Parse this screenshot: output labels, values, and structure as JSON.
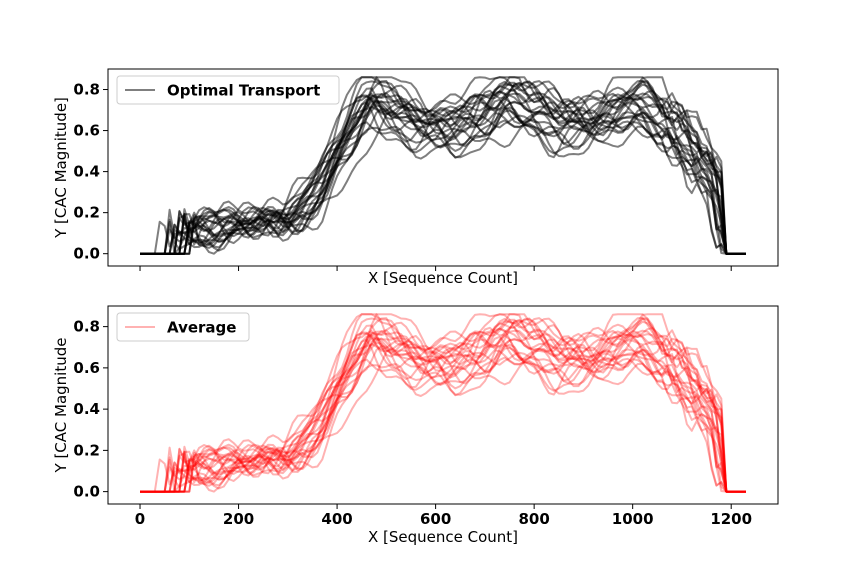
{
  "chart_data": [
    {
      "type": "line",
      "xlim": [
        -65,
        1295
      ],
      "ylim": [
        -0.06,
        0.9
      ],
      "xticks": [
        0,
        200,
        400,
        600,
        800,
        1000,
        1200
      ],
      "yticks": [
        0.0,
        0.2,
        0.4,
        0.6,
        0.8
      ],
      "ytick_labels": [
        "0.0",
        "0.2",
        "0.4",
        "0.6",
        "0.8"
      ],
      "show_xtick_labels": false,
      "xlabel": "X [Sequence Count]",
      "ylabel": "Y [CAC Magnitude]",
      "legend": {
        "label": "Optimal Transport",
        "color": "#000000",
        "placement": "upper left"
      },
      "series_color": "#000000",
      "line_alpha": 0.5,
      "num_series": 24,
      "x_range": [
        0,
        1230
      ],
      "nonzero_span": [
        60,
        1183
      ],
      "approx_mean_curve": {
        "x": [
          0,
          58,
          62,
          100,
          150,
          200,
          250,
          300,
          350,
          400,
          450,
          480,
          520,
          560,
          600,
          650,
          700,
          740,
          780,
          820,
          860,
          900,
          950,
          1000,
          1020,
          1060,
          1100,
          1140,
          1175,
          1183,
          1186,
          1230
        ],
        "y": [
          0.0,
          0.0,
          0.06,
          0.1,
          0.13,
          0.16,
          0.18,
          0.17,
          0.27,
          0.5,
          0.74,
          0.78,
          0.72,
          0.67,
          0.65,
          0.66,
          0.7,
          0.78,
          0.74,
          0.7,
          0.66,
          0.68,
          0.7,
          0.77,
          0.75,
          0.66,
          0.57,
          0.45,
          0.33,
          0.1,
          0.0,
          0.0
        ]
      }
    },
    {
      "type": "line",
      "xlim": [
        -65,
        1295
      ],
      "ylim": [
        -0.06,
        0.9
      ],
      "xticks": [
        0,
        200,
        400,
        600,
        800,
        1000,
        1200
      ],
      "xtick_labels": [
        "0",
        "200",
        "400",
        "600",
        "800",
        "1000",
        "1200"
      ],
      "yticks": [
        0.0,
        0.2,
        0.4,
        0.6,
        0.8
      ],
      "ytick_labels": [
        "0.0",
        "0.2",
        "0.4",
        "0.6",
        "0.8"
      ],
      "show_xtick_labels": true,
      "xlabel": "X [Sequence Count]",
      "ylabel": "Y [CAC Magnitude",
      "legend": {
        "label": "Average",
        "color": "#ff0000",
        "placement": "upper left"
      },
      "series_color": "#ff0000",
      "line_alpha": 0.3,
      "num_series": 24,
      "x_range": [
        0,
        1230
      ],
      "nonzero_span": [
        60,
        1183
      ],
      "approx_mean_curve": {
        "x": [
          0,
          58,
          62,
          100,
          150,
          200,
          250,
          300,
          350,
          400,
          450,
          480,
          520,
          560,
          600,
          650,
          700,
          740,
          780,
          820,
          860,
          900,
          950,
          1000,
          1020,
          1060,
          1100,
          1140,
          1175,
          1183,
          1186,
          1230
        ],
        "y": [
          0.0,
          0.0,
          0.06,
          0.1,
          0.13,
          0.16,
          0.18,
          0.17,
          0.27,
          0.5,
          0.74,
          0.78,
          0.72,
          0.67,
          0.65,
          0.66,
          0.7,
          0.78,
          0.74,
          0.7,
          0.66,
          0.68,
          0.7,
          0.77,
          0.75,
          0.66,
          0.57,
          0.45,
          0.33,
          0.1,
          0.0,
          0.0
        ]
      }
    }
  ]
}
